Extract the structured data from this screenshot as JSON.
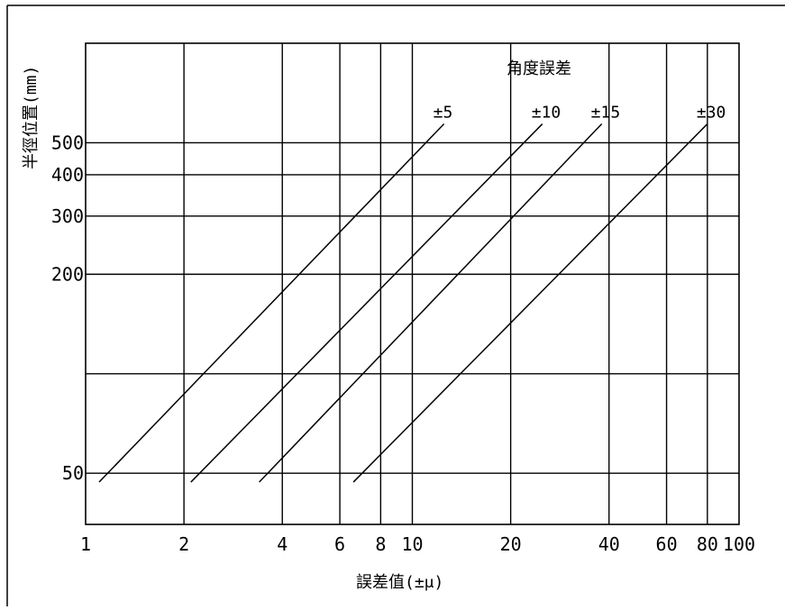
{
  "chart_data": {
    "type": "line",
    "title": "",
    "legend_title": "角度誤差",
    "legend_placement": "top-right",
    "xlabel": "誤差值(±μ)",
    "ylabel": "半徑位置(mm)",
    "x_scale": "log",
    "y_scale": "log",
    "xlim": [
      1,
      100
    ],
    "ylim": [
      35,
      1000
    ],
    "grid": true,
    "x_ticks": [
      {
        "value": 1,
        "label": "1"
      },
      {
        "value": 2,
        "label": "2"
      },
      {
        "value": 4,
        "label": "4"
      },
      {
        "value": 6,
        "label": "6"
      },
      {
        "value": 8,
        "label": "8"
      },
      {
        "value": 10,
        "label": "10"
      },
      {
        "value": 20,
        "label": "20"
      },
      {
        "value": 40,
        "label": "40"
      },
      {
        "value": 60,
        "label": "60"
      },
      {
        "value": 80,
        "label": "80"
      },
      {
        "value": 100,
        "label": "100"
      }
    ],
    "y_ticks": [
      {
        "value": 50,
        "label": "50"
      },
      {
        "value": 100,
        "label": ""
      },
      {
        "value": 200,
        "label": "200"
      },
      {
        "value": 300,
        "label": "300"
      },
      {
        "value": 400,
        "label": "400"
      },
      {
        "value": 500,
        "label": "500"
      }
    ],
    "series": [
      {
        "name": "±5",
        "x": [
          1.1,
          12.5
        ],
        "y": [
          47,
          570
        ]
      },
      {
        "name": "±10",
        "x": [
          2.1,
          25
        ],
        "y": [
          47,
          570
        ]
      },
      {
        "name": "±15",
        "x": [
          3.4,
          38
        ],
        "y": [
          47,
          570
        ]
      },
      {
        "name": "±30",
        "x": [
          6.6,
          80
        ],
        "y": [
          47,
          570
        ]
      }
    ],
    "colors": {
      "lines": "#000000",
      "background": "#ffffff"
    }
  }
}
